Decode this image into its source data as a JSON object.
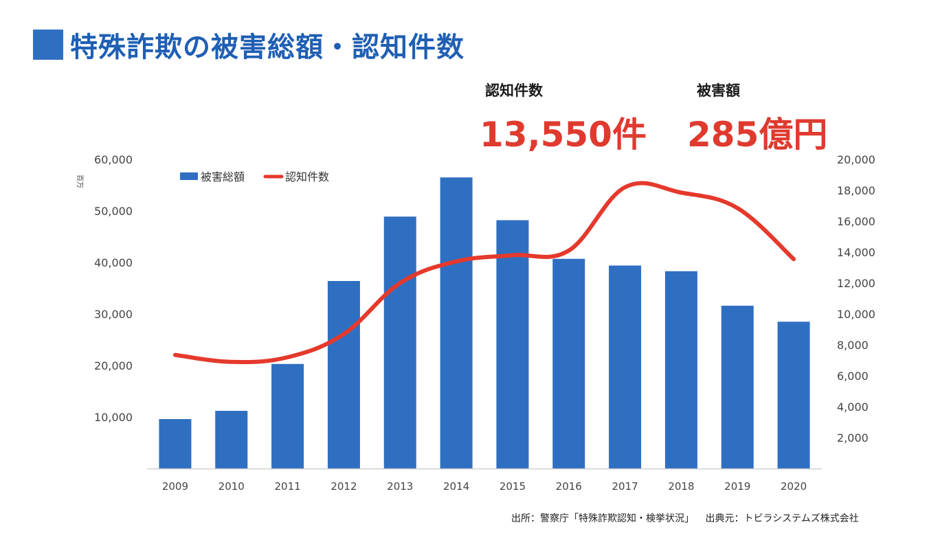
{
  "title": "特殊詐欺の被害総額・認知件数",
  "stats": {
    "count_label": "認知件数",
    "count_value": "13,550件",
    "amount_label": "被害額",
    "amount_value": "285億円"
  },
  "colors": {
    "bar": "#2f6fc1",
    "line": "#e5392c",
    "title": "#1f5fb4",
    "accent": "#e03a2f"
  },
  "chart_data": {
    "type": "bar",
    "categories": [
      "2009",
      "2010",
      "2011",
      "2012",
      "2013",
      "2014",
      "2015",
      "2016",
      "2017",
      "2018",
      "2019",
      "2020"
    ],
    "series": [
      {
        "name": "被害総額",
        "type": "bar",
        "axis": "left",
        "values": [
          9600,
          11200,
          20300,
          36400,
          48900,
          56500,
          48200,
          40700,
          39400,
          38300,
          31600,
          28500
        ]
      },
      {
        "name": "認知件数",
        "type": "line",
        "axis": "right",
        "values": [
          7350,
          6900,
          7200,
          8700,
          12000,
          13400,
          13800,
          14100,
          18200,
          17850,
          16850,
          13550
        ]
      }
    ],
    "left_axis": {
      "unit_label": "百万",
      "ylim": [
        0,
        60000
      ],
      "ticks": [
        10000,
        20000,
        30000,
        40000,
        50000,
        60000
      ],
      "tick_labels": [
        "10,000",
        "20,000",
        "30,000",
        "40,000",
        "50,000",
        "60,000"
      ]
    },
    "right_axis": {
      "ylim": [
        0,
        20000
      ],
      "ticks": [
        2000,
        4000,
        6000,
        8000,
        10000,
        12000,
        14000,
        16000,
        18000,
        20000
      ],
      "tick_labels": [
        "2,000",
        "4,000",
        "6,000",
        "8,000",
        "10,000",
        "12,000",
        "14,000",
        "16,000",
        "18,000",
        "20,000"
      ]
    },
    "legend": {
      "position": "top-left",
      "entries": [
        "被害総額",
        "認知件数"
      ]
    },
    "grid": false
  },
  "footer": {
    "source": "出所：警察庁「特殊詐欺認知・検挙状況」",
    "credit": "出典元：トビラシステムズ株式会社"
  }
}
